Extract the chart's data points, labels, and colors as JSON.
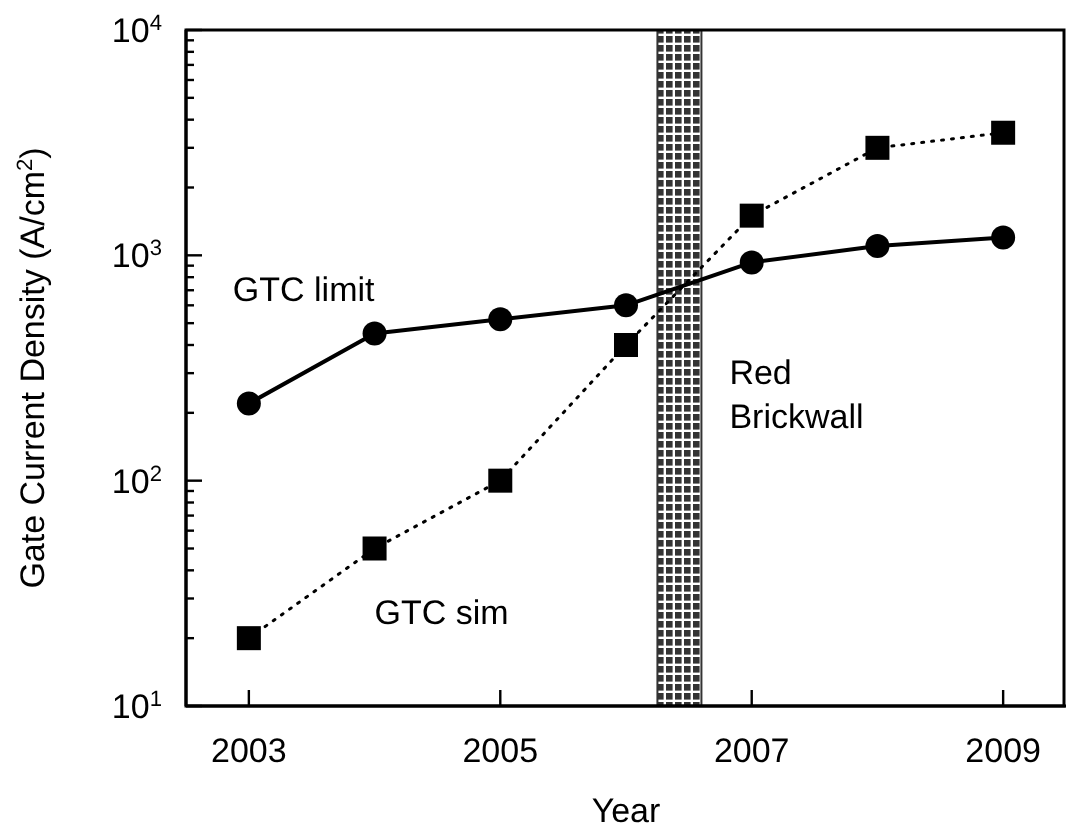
{
  "chart_data": {
    "type": "line",
    "xlabel": "Year",
    "ylabel": "Gate Current Density (A/cm$^{2}$)",
    "x": [
      2003,
      2004,
      2005,
      2006,
      2007,
      2008,
      2009
    ],
    "series": [
      {
        "name": "GTC limit",
        "color": "#000000",
        "marker": "circle",
        "line_style": "solid",
        "values": [
          220,
          450,
          520,
          600,
          930,
          1100,
          1200
        ]
      },
      {
        "name": "GTC sim",
        "color": "#000000",
        "marker": "square",
        "line_style": "dotted",
        "values": [
          20,
          50,
          100,
          400,
          1500,
          3000,
          3500
        ]
      }
    ],
    "xlim": [
      2002.5,
      2009.5
    ],
    "xticks": [
      2003,
      2005,
      2007,
      2009
    ],
    "ylim": [
      10,
      10000
    ],
    "log": true,
    "yticks": [
      {
        "value": 10,
        "label": "10$^{1}$"
      },
      {
        "value": 20,
        "label": null
      },
      {
        "value": 30,
        "label": null
      },
      {
        "value": 40,
        "label": null
      },
      {
        "value": 50,
        "label": null
      },
      {
        "value": 60,
        "label": null
      },
      {
        "value": 70,
        "label": null
      },
      {
        "value": 80,
        "label": null
      },
      {
        "value": 90,
        "label": null
      },
      {
        "value": 100,
        "label": "10$^{2}$"
      },
      {
        "value": 200,
        "label": null
      },
      {
        "value": 300,
        "label": null
      },
      {
        "value": 400,
        "label": null
      },
      {
        "value": 500,
        "label": null
      },
      {
        "value": 600,
        "label": null
      },
      {
        "value": 700,
        "label": null
      },
      {
        "value": 800,
        "label": null
      },
      {
        "value": 900,
        "label": null
      },
      {
        "value": 1000,
        "label": "10$^{3}$"
      },
      {
        "value": 2000,
        "label": null
      },
      {
        "value": 3000,
        "label": null
      },
      {
        "value": 4000,
        "label": null
      },
      {
        "value": 5000,
        "label": null
      },
      {
        "value": 6000,
        "label": null
      },
      {
        "value": 7000,
        "label": null
      },
      {
        "value": 8000,
        "label": null
      },
      {
        "value": 9000,
        "label": null
      },
      {
        "value": 10000,
        "label": "10$^{4}$"
      }
    ],
    "bands": [
      {
        "axis": "x",
        "from": 2006.25,
        "to": 2006.6,
        "label": "Red\nBrickwall",
        "color": "#333333"
      }
    ],
    "grid": false,
    "legend": false
  }
}
